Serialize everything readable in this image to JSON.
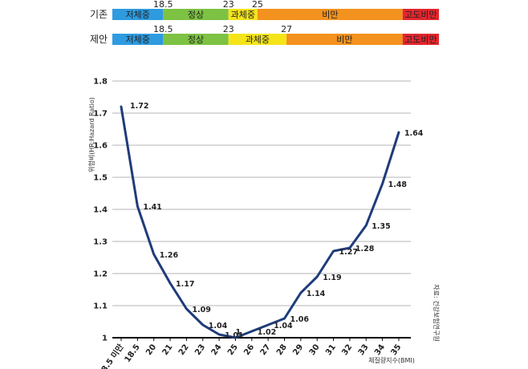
{
  "chart_data": {
    "type": "line",
    "ylabel": "위험비(HR:Hazard Ratio)",
    "xlabel": "체질량지수(BMI)",
    "source": "자료: 건강보험연구원",
    "ylim": [
      1,
      1.8
    ],
    "yticks": [
      "1",
      "1.1",
      "1.2",
      "1.3",
      "1.4",
      "1.5",
      "1.6",
      "1.7",
      "1.8"
    ],
    "categories": [
      "18.5 미만",
      "18.5",
      "20",
      "21",
      "22",
      "23",
      "24",
      "25",
      "26",
      "27",
      "28",
      "29",
      "30",
      "31",
      "32",
      "33",
      "34",
      "35"
    ],
    "series": [
      {
        "name": "위험비",
        "color": "#1f3c7a",
        "values": [
          1.72,
          1.41,
          1.26,
          1.17,
          1.09,
          1.04,
          1.01,
          1,
          1.02,
          1.04,
          1.06,
          1.14,
          1.19,
          1.27,
          1.28,
          1.35,
          1.48,
          1.64
        ],
        "labels": [
          "1.72",
          "1.41",
          "1.26",
          "1.17",
          "1.09",
          "1.04",
          "1.01",
          "1",
          "1.02",
          "1.04",
          "1.06",
          "1.14",
          "1.19",
          "1.27",
          "1.28",
          "1.35",
          "1.48",
          "1.64"
        ]
      }
    ]
  },
  "bands": [
    {
      "label": "기존",
      "segments": [
        {
          "name": "저체중",
          "start": 15,
          "end": 18.5,
          "color": "#2e9be0"
        },
        {
          "name": "정상",
          "start": 18.5,
          "end": 23,
          "color": "#7dc243"
        },
        {
          "name": "과체중",
          "start": 23,
          "end": 25,
          "color": "#f5e41a"
        },
        {
          "name": "비만",
          "start": 25,
          "end": 35,
          "color": "#f3921e"
        },
        {
          "name": "고도비만",
          "start": 35,
          "end": 37.5,
          "color": "#e3262e"
        }
      ],
      "boundaries": [
        "18.5",
        "23",
        "25"
      ]
    },
    {
      "label": "제안",
      "segments": [
        {
          "name": "저체중",
          "start": 15,
          "end": 18.5,
          "color": "#2e9be0"
        },
        {
          "name": "정상",
          "start": 18.5,
          "end": 23,
          "color": "#7dc243"
        },
        {
          "name": "과체중",
          "start": 23,
          "end": 27,
          "color": "#f5e41a"
        },
        {
          "name": "비만",
          "start": 27,
          "end": 35,
          "color": "#f3921e"
        },
        {
          "name": "고도비만",
          "start": 35,
          "end": 37.5,
          "color": "#e3262e"
        }
      ],
      "boundaries": [
        "18.5",
        "23",
        "27"
      ]
    }
  ]
}
